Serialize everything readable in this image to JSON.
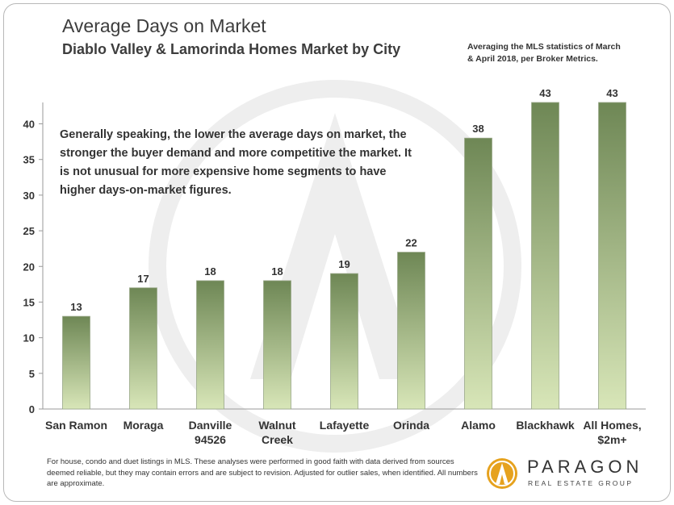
{
  "title": "Average Days on Market",
  "subtitle": "Diablo Valley & Lamorinda Homes Market by City",
  "side_note": "Averaging the MLS statistics of March & April 2018, per Broker Metrics.",
  "annotation": "Generally speaking, the lower the average days on market, the stronger the buyer demand and more competitive the market. It is not unusual for more expensive home segments to have higher days-on-market figures.",
  "footnote": "For house, condo and duet listings in MLS. These analyses were performed in good faith with data derived from sources deemed reliable, but they may contain errors and are subject to revision. Adjusted for outlier sales, when identified. All numbers are approximate.",
  "logo": {
    "name": "PARAGON",
    "tagline": "REAL ESTATE GROUP"
  },
  "colors": {
    "bar_top": "#6e8755",
    "bar_bottom": "#d8e6b8",
    "text": "#3d3d3d",
    "watermark": "#eeeeee"
  },
  "chart_data": {
    "type": "bar",
    "title": "Average Days on Market",
    "subtitle": "Diablo Valley & Lamorinda Homes Market by City",
    "categories": [
      [
        "San Ramon"
      ],
      [
        "Moraga"
      ],
      [
        "Danville",
        "94526"
      ],
      [
        "Walnut",
        "Creek"
      ],
      [
        "Lafayette"
      ],
      [
        "Orinda"
      ],
      [
        "Alamo"
      ],
      [
        "Blackhawk"
      ],
      [
        "All Homes,",
        "$2m+"
      ]
    ],
    "values": [
      13,
      17,
      18,
      18,
      19,
      22,
      38,
      43,
      43
    ],
    "data_labels": [
      "13",
      "17",
      "18",
      "18",
      "19",
      "22",
      "38",
      "43",
      "43"
    ],
    "ylim": [
      0,
      43
    ],
    "yticks": [
      0,
      5,
      10,
      15,
      20,
      25,
      30,
      35,
      40
    ],
    "grid": false,
    "legend": "none"
  }
}
